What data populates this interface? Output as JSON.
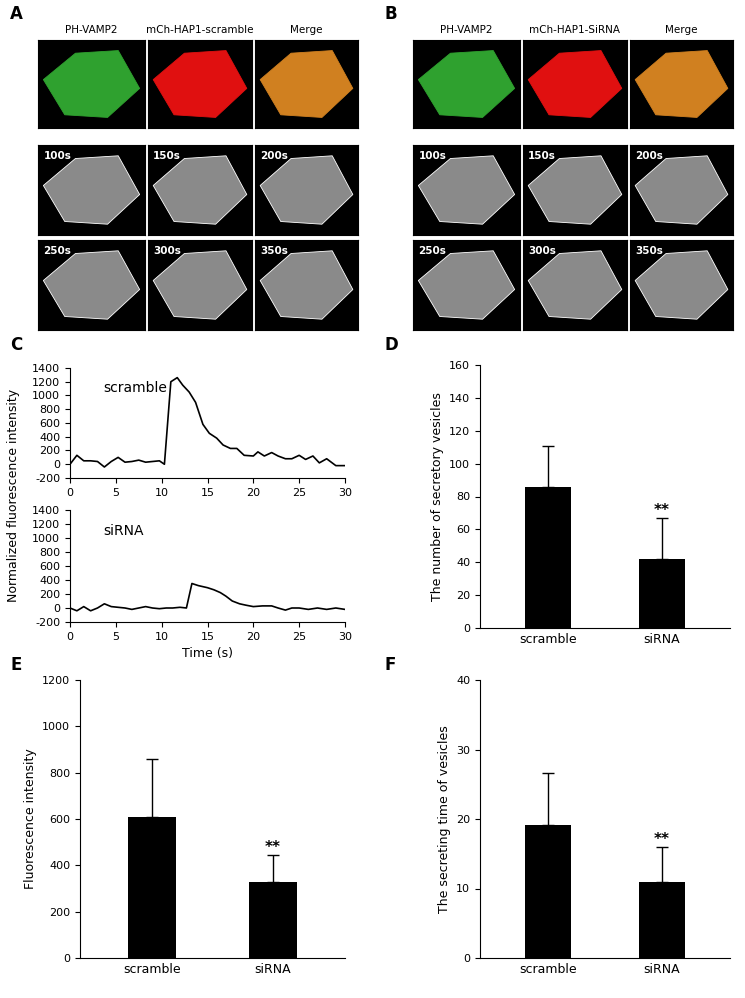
{
  "image_panels": [
    {
      "panel": "A",
      "headers": [
        "PH-VAMP2",
        "mCh-HAP1-scramble",
        "Merge"
      ],
      "times": [
        "100s",
        "150s",
        "200s",
        "250s",
        "300s",
        "350s"
      ]
    },
    {
      "panel": "B",
      "headers": [
        "PH-VAMP2",
        "mCh-HAP1-SiRNA",
        "Merge"
      ],
      "times": [
        "100s",
        "150s",
        "200s",
        "250s",
        "300s",
        "350s"
      ]
    }
  ],
  "chart_data": [
    {
      "type": "line",
      "panel": "C",
      "y_label": "Normalized fluorescence intensity",
      "x_label": "Time (s)",
      "xlim": [
        0,
        30
      ],
      "xticks": [
        0,
        5,
        10,
        15,
        20,
        25,
        30
      ],
      "ylim": [
        -200,
        1400
      ],
      "yticks": [
        -200,
        0,
        200,
        400,
        600,
        800,
        1000,
        1200,
        1400
      ],
      "series": [
        {
          "name": "scramble",
          "color": "#000000",
          "x": [
            0,
            0.75,
            1.5,
            2.25,
            3,
            3.75,
            4.5,
            5.25,
            6,
            6.75,
            7.5,
            8.25,
            9,
            9.75,
            10.3,
            11,
            11.7,
            12.3,
            13,
            13.7,
            14.5,
            15.2,
            16,
            16.7,
            17.5,
            18.2,
            19,
            20,
            20.5,
            21.2,
            22,
            22.7,
            23.5,
            24.2,
            25,
            25.7,
            26.5,
            27.2,
            28,
            29,
            30
          ],
          "values": [
            0,
            130,
            50,
            50,
            40,
            -40,
            40,
            100,
            30,
            40,
            60,
            30,
            40,
            50,
            0,
            1200,
            1260,
            1150,
            1050,
            900,
            580,
            450,
            380,
            280,
            230,
            230,
            130,
            120,
            180,
            120,
            170,
            120,
            80,
            80,
            130,
            70,
            120,
            20,
            80,
            -20,
            -20
          ]
        },
        {
          "name": "siRNA",
          "color": "#000000",
          "x": [
            0,
            0.75,
            1.5,
            2.25,
            3,
            3.75,
            4.5,
            5.25,
            6,
            6.75,
            7.5,
            8.25,
            9,
            9.75,
            10.5,
            11.2,
            12,
            12.7,
            13.3,
            14,
            15,
            15.7,
            16.4,
            17,
            17.7,
            18.5,
            19.2,
            20,
            21,
            22,
            22.7,
            23.5,
            24.2,
            25,
            26,
            27,
            28,
            29,
            30
          ],
          "values": [
            0,
            -40,
            20,
            -40,
            0,
            60,
            20,
            10,
            0,
            -20,
            0,
            20,
            0,
            -10,
            0,
            0,
            10,
            0,
            350,
            320,
            290,
            260,
            220,
            170,
            100,
            60,
            40,
            20,
            30,
            30,
            0,
            -30,
            0,
            0,
            -20,
            0,
            -20,
            0,
            -20
          ]
        }
      ]
    },
    {
      "type": "bar",
      "panel": "D",
      "y_label": "The number of secretory vesicles",
      "categories": [
        "scramble",
        "siRNA"
      ],
      "values": [
        86,
        42
      ],
      "errors": [
        25,
        25
      ],
      "annotation": "**",
      "color": "#000000",
      "ylim": [
        0,
        160
      ],
      "yticks": [
        0,
        20,
        40,
        60,
        80,
        100,
        120,
        140,
        160
      ]
    },
    {
      "type": "bar",
      "panel": "E",
      "y_label": "Fluorescence intensity",
      "categories": [
        "scramble",
        "siRNA"
      ],
      "values": [
        610,
        330
      ],
      "errors": [
        250,
        115
      ],
      "annotation": "**",
      "color": "#000000",
      "ylim": [
        0,
        1200
      ],
      "yticks": [
        0,
        200,
        400,
        600,
        800,
        1000,
        1200
      ]
    },
    {
      "type": "bar",
      "panel": "F",
      "y_label": "The secreting time of vesicles",
      "categories": [
        "scramble",
        "siRNA"
      ],
      "values": [
        19.2,
        11
      ],
      "errors": [
        7.4,
        5
      ],
      "annotation": "**",
      "color": "#000000",
      "ylim": [
        0,
        40
      ],
      "yticks": [
        0,
        10,
        20,
        30,
        40
      ]
    }
  ]
}
